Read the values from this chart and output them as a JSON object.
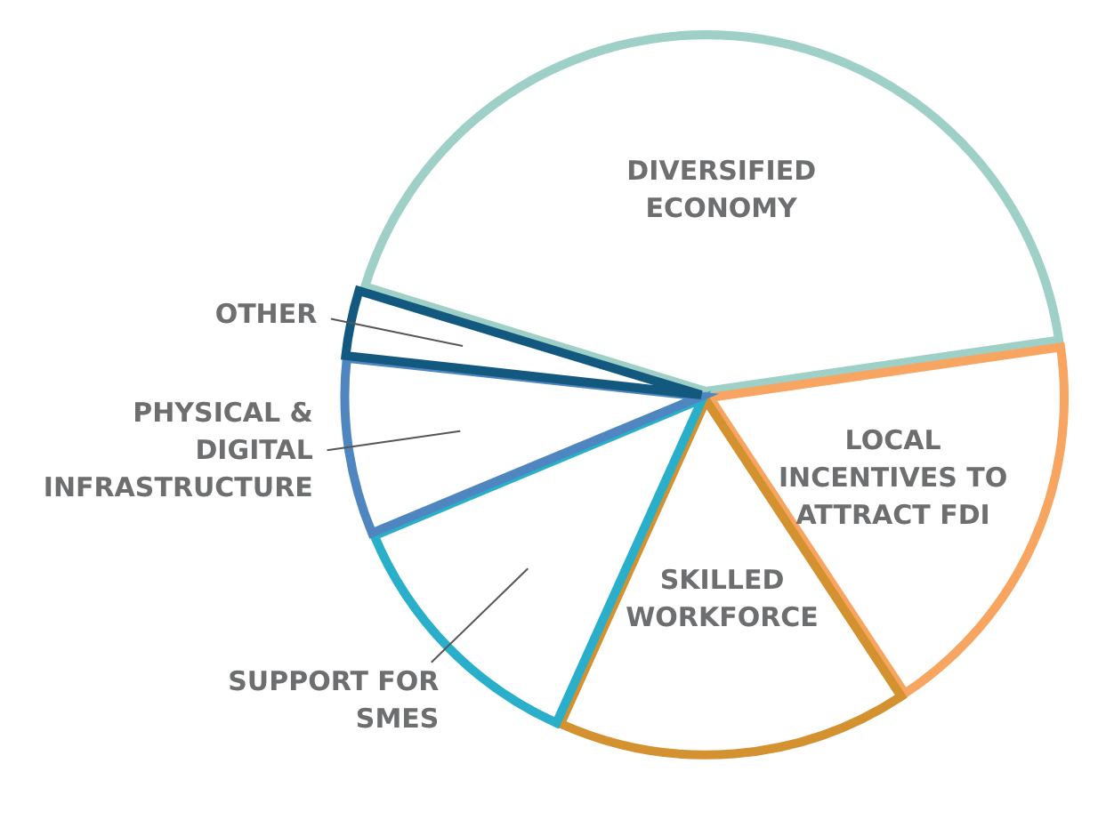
{
  "chart_data": {
    "type": "pie",
    "categories": [
      "DIVERSIFIED ECONOMY",
      "LOCAL INCENTIVES TO ATTRACT FDI",
      "SKILLED WORKFORCE",
      "SUPPORT FOR SMES",
      "PHYSICAL & DIGITAL INFRASTRUCTURE",
      "OTHER"
    ],
    "values": [
      43,
      18,
      16,
      12,
      8,
      3
    ],
    "colors": [
      "#9fd0c7",
      "#f7a561",
      "#d4912f",
      "#2aafca",
      "#4f86c0",
      "#12587f"
    ],
    "legend": false
  }
}
